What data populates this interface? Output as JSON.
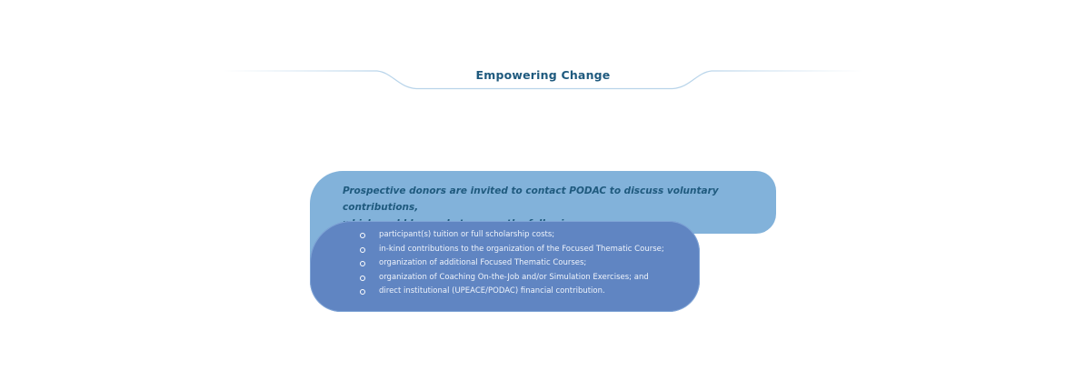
{
  "header": {
    "title": "Empowering Change"
  },
  "callout": {
    "intro_line1": "Prospective donors are invited to contact PODAC to discuss voluntary contributions,",
    "intro_line2": "which could be made to cover the following:",
    "items": [
      "participant(s) tuition or full scholarship costs;",
      "in-kind contributions to the organization of the Focused Thematic Course;",
      "organization of additional Focused Thematic Courses;",
      "organization of Coaching On-the-Job and/or Simulation Exercises; and",
      "direct institutional (UPEACE/PODAC) financial contribution."
    ]
  },
  "colors": {
    "title": "#1f5a7e",
    "callout_back": "#82b2da",
    "callout_front": "#6085c2",
    "header_line": "#b8d4ea"
  }
}
